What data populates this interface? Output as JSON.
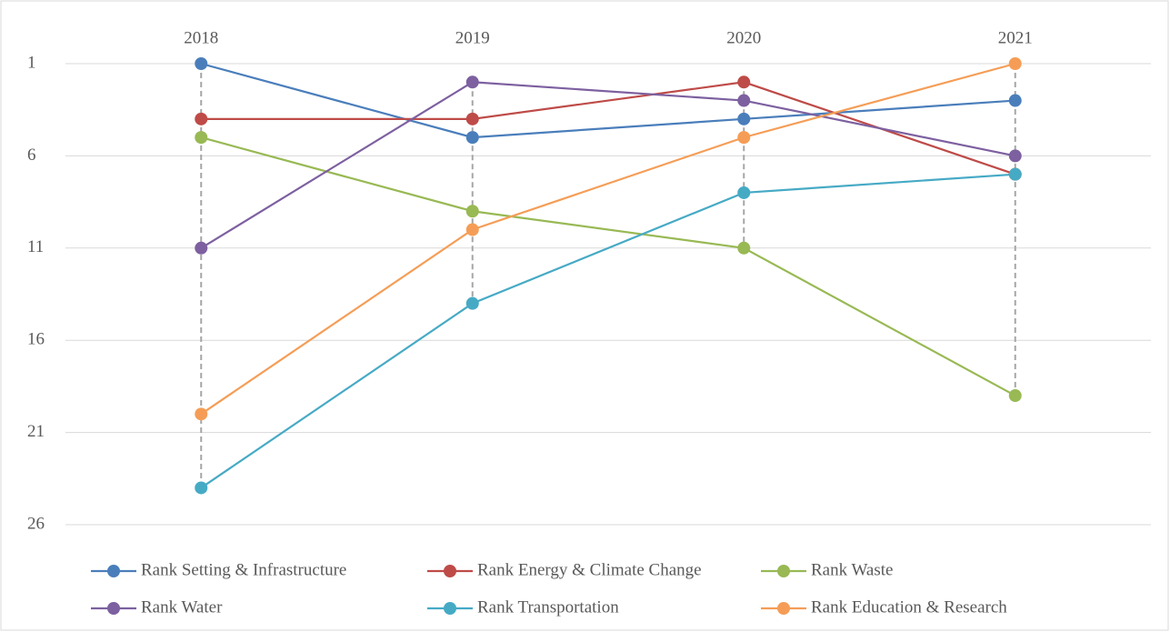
{
  "chart_data": {
    "type": "line",
    "categories": [
      "2018",
      "2019",
      "2020",
      "2021"
    ],
    "series": [
      {
        "name": "Rank Setting & Infrastructure",
        "color": "#4a7ebb",
        "values": [
          1,
          5,
          4,
          3
        ]
      },
      {
        "name": "Rank Energy & Climate Change",
        "color": "#be4b48",
        "values": [
          4,
          4,
          2,
          7
        ]
      },
      {
        "name": "Rank Waste",
        "color": "#98b954",
        "values": [
          5,
          9,
          11,
          19
        ]
      },
      {
        "name": "Rank Water",
        "color": "#7d60a0",
        "values": [
          11,
          2,
          3,
          6
        ]
      },
      {
        "name": "Rank Transportation",
        "color": "#46aac5",
        "values": [
          24,
          14,
          8,
          7
        ]
      },
      {
        "name": "Rank Education & Research",
        "color": "#f59d56",
        "values": [
          20,
          10,
          5,
          1
        ]
      }
    ],
    "ylim": [
      1,
      26
    ],
    "yticks": [
      1,
      6,
      11,
      16,
      21,
      26
    ],
    "y_inverted": true,
    "grid": true,
    "high_low_lines": true,
    "legend": "bottom"
  }
}
